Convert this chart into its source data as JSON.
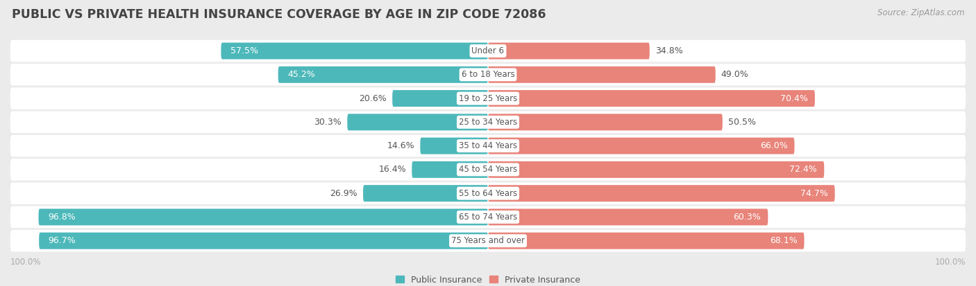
{
  "title": "PUBLIC VS PRIVATE HEALTH INSURANCE COVERAGE BY AGE IN ZIP CODE 72086",
  "source": "Source: ZipAtlas.com",
  "categories": [
    "Under 6",
    "6 to 18 Years",
    "19 to 25 Years",
    "25 to 34 Years",
    "35 to 44 Years",
    "45 to 54 Years",
    "55 to 64 Years",
    "65 to 74 Years",
    "75 Years and over"
  ],
  "public_values": [
    57.5,
    45.2,
    20.6,
    30.3,
    14.6,
    16.4,
    26.9,
    96.8,
    96.7
  ],
  "private_values": [
    34.8,
    49.0,
    70.4,
    50.5,
    66.0,
    72.4,
    74.7,
    60.3,
    68.1
  ],
  "public_color": "#4db8ba",
  "private_color": "#e8847a",
  "background_color": "#ebebeb",
  "bar_bg_color": "#ffffff",
  "row_gap_color": "#d8d8d8",
  "label_color_dark": "#555555",
  "label_color_white": "#ffffff",
  "title_color": "#444444",
  "source_color": "#999999",
  "axis_label_color": "#aaaaaa",
  "bar_height": 0.7,
  "max_value": 100.0,
  "title_fontsize": 12.5,
  "source_fontsize": 8.5,
  "bar_label_fontsize": 9.0,
  "category_fontsize": 8.5,
  "axis_fontsize": 8.5,
  "legend_fontsize": 9.0
}
